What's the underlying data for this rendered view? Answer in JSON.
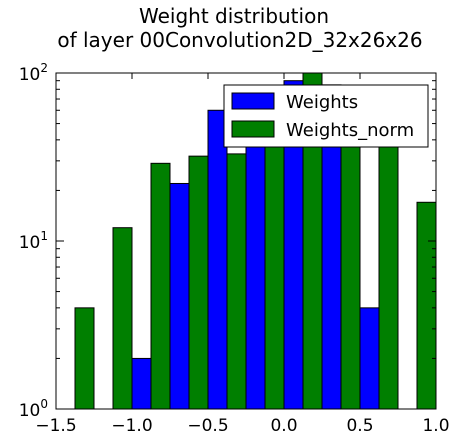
{
  "chart_data": {
    "type": "bar",
    "title": [
      "Weight distribution",
      "of layer 00Convolution2D_32x26x26"
    ],
    "xlabel": "",
    "ylabel": "",
    "xlim": [
      -1.5,
      1.0
    ],
    "ylim": [
      1,
      100
    ],
    "yscale": "log",
    "x_ticks": [
      -1.5,
      -1.0,
      -0.5,
      0.0,
      0.5,
      1.0
    ],
    "x_tick_labels": [
      "−1.5",
      "−1.0",
      "−0.5",
      "0.0",
      "0.5",
      "1.0"
    ],
    "y_ticks": [
      {
        "value": 1,
        "base": "10",
        "exp": "0"
      },
      {
        "value": 10,
        "base": "10",
        "exp": "1"
      },
      {
        "value": 100,
        "base": "10",
        "exp": "2"
      }
    ],
    "bin_width": 0.25,
    "bins": [
      [
        -1.5,
        -1.25
      ],
      [
        -1.25,
        -1.0
      ],
      [
        -1.0,
        -0.75
      ],
      [
        -0.75,
        -0.5
      ],
      [
        -0.5,
        -0.25
      ],
      [
        -0.25,
        0.0
      ],
      [
        0.0,
        0.25
      ],
      [
        0.25,
        0.5
      ],
      [
        0.5,
        0.75
      ],
      [
        0.75,
        1.0
      ]
    ],
    "series": [
      {
        "name": "Weights",
        "color": "#0000ff",
        "values": [
          1,
          1,
          2,
          22,
          60,
          80,
          90,
          85,
          4,
          1
        ]
      },
      {
        "name": "Weights_norm",
        "color": "#007f00",
        "values": [
          4,
          12,
          29,
          32,
          33,
          80,
          100,
          75,
          60,
          17
        ]
      }
    ],
    "legend": "top-right",
    "grid": false
  }
}
